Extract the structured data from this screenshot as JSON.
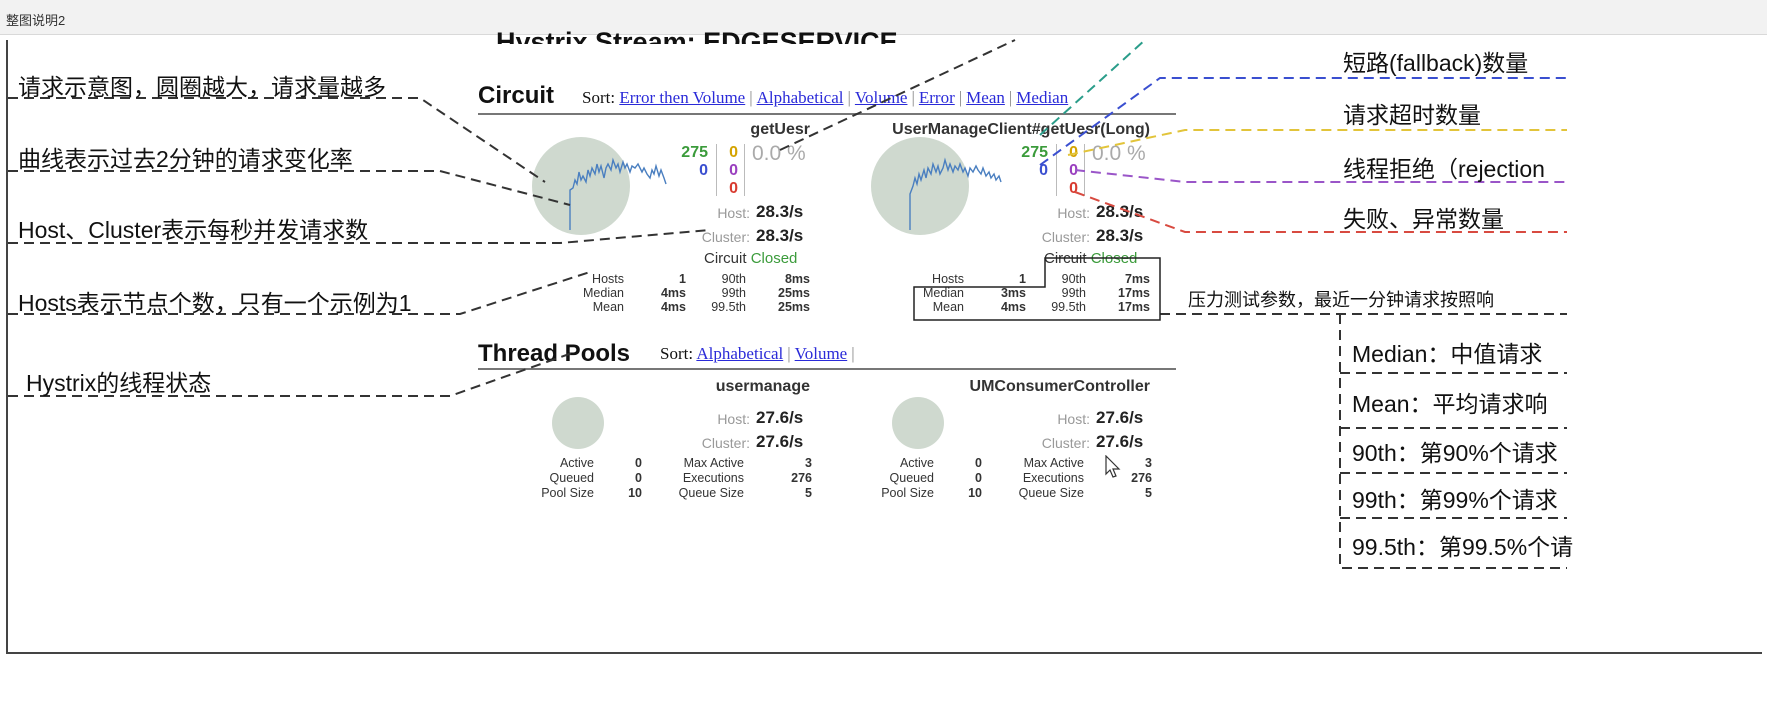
{
  "window": {
    "title": "整图说明2"
  },
  "dashboard": {
    "stream_title": "Hystrix Stream: EDGESERVICE",
    "circuit": {
      "title": "Circuit",
      "sort_label": "Sort:",
      "sort_options": [
        "Error then Volume",
        "Alphabetical",
        "Volume",
        "Error",
        "Mean",
        "Median"
      ],
      "host_label": "Host:",
      "cluster_label": "Cluster:",
      "circuit_label": "Circuit",
      "items": [
        {
          "name": "getUesr",
          "success": "275",
          "short_circuited": "0",
          "timeout": "0",
          "rejected": "0",
          "failure": "0",
          "error_pct": "0.0 %",
          "host_rate": "28.3/s",
          "cluster_rate": "28.3/s",
          "status": "Closed",
          "hosts_label": "Hosts",
          "hosts": "1",
          "median_label": "Median",
          "median": "4ms",
          "mean_label": "Mean",
          "mean": "4ms",
          "p90_label": "90th",
          "p90": "8ms",
          "p99_label": "99th",
          "p99": "25ms",
          "p995_label": "99.5th",
          "p995": "25ms"
        },
        {
          "name": "UserManageClient#getUesr(Long)",
          "success": "275",
          "short_circuited": "0",
          "timeout": "0",
          "rejected": "0",
          "failure": "0",
          "error_pct": "0.0 %",
          "host_rate": "28.3/s",
          "cluster_rate": "28.3/s",
          "status": "Closed",
          "hosts_label": "Hosts",
          "hosts": "1",
          "median_label": "Median",
          "median": "3ms",
          "mean_label": "Mean",
          "mean": "4ms",
          "p90_label": "90th",
          "p90": "7ms",
          "p99_label": "99th",
          "p99": "17ms",
          "p995_label": "99.5th",
          "p995": "17ms"
        }
      ]
    },
    "thread_pools": {
      "title": "Thread Pools",
      "sort_label": "Sort:",
      "sort_options": [
        "Alphabetical",
        "Volume"
      ],
      "items": [
        {
          "name": "usermanage",
          "host_rate": "27.6/s",
          "cluster_rate": "27.6/s",
          "active_label": "Active",
          "active": "0",
          "queued_label": "Queued",
          "queued": "0",
          "pool_size_label": "Pool Size",
          "pool_size": "10",
          "max_active_label": "Max Active",
          "max_active": "3",
          "executions_label": "Executions",
          "executions": "276",
          "queue_size_label": "Queue Size",
          "queue_size": "5"
        },
        {
          "name": "UMConsumerController",
          "host_rate": "27.6/s",
          "cluster_rate": "27.6/s",
          "active_label": "Active",
          "active": "0",
          "queued_label": "Queued",
          "queued": "0",
          "pool_size_label": "Pool Size",
          "pool_size": "10",
          "max_active_label": "Max Active",
          "max_active": "3",
          "executions_label": "Executions",
          "executions": "276",
          "queue_size_label": "Queue Size",
          "queue_size": "5"
        }
      ]
    }
  },
  "annotations": {
    "left": [
      "请求示意图，圆圈越大，请求量越多",
      "曲线表示过去2分钟的请求变化率",
      "Host、Cluster表示每秒并发请求数",
      "Hosts表示节点个数，只有一个示例为1",
      "Hystrix的线程状态"
    ],
    "right": [
      "短路(fallback)数量",
      "请求超时数量",
      "线程拒绝（rejection",
      "失败、异常数量"
    ],
    "stats_note": "压力测试参数，最近一分钟请求按照响",
    "stats_box": [
      "Median：中值请求",
      "Mean：平均请求响",
      "90th：第90%个请求",
      "99th：第99%个请求",
      "99.5th：第99.5%个请"
    ]
  },
  "colors": {
    "success": "#3b9b3b",
    "short_circuited": "#3a4fd0",
    "timeout": "#d4a300",
    "rejected": "#9a3fbf",
    "failure": "#d83b2f",
    "bubble": "#cfd9cf",
    "sort_link": "#2a2ad8"
  }
}
